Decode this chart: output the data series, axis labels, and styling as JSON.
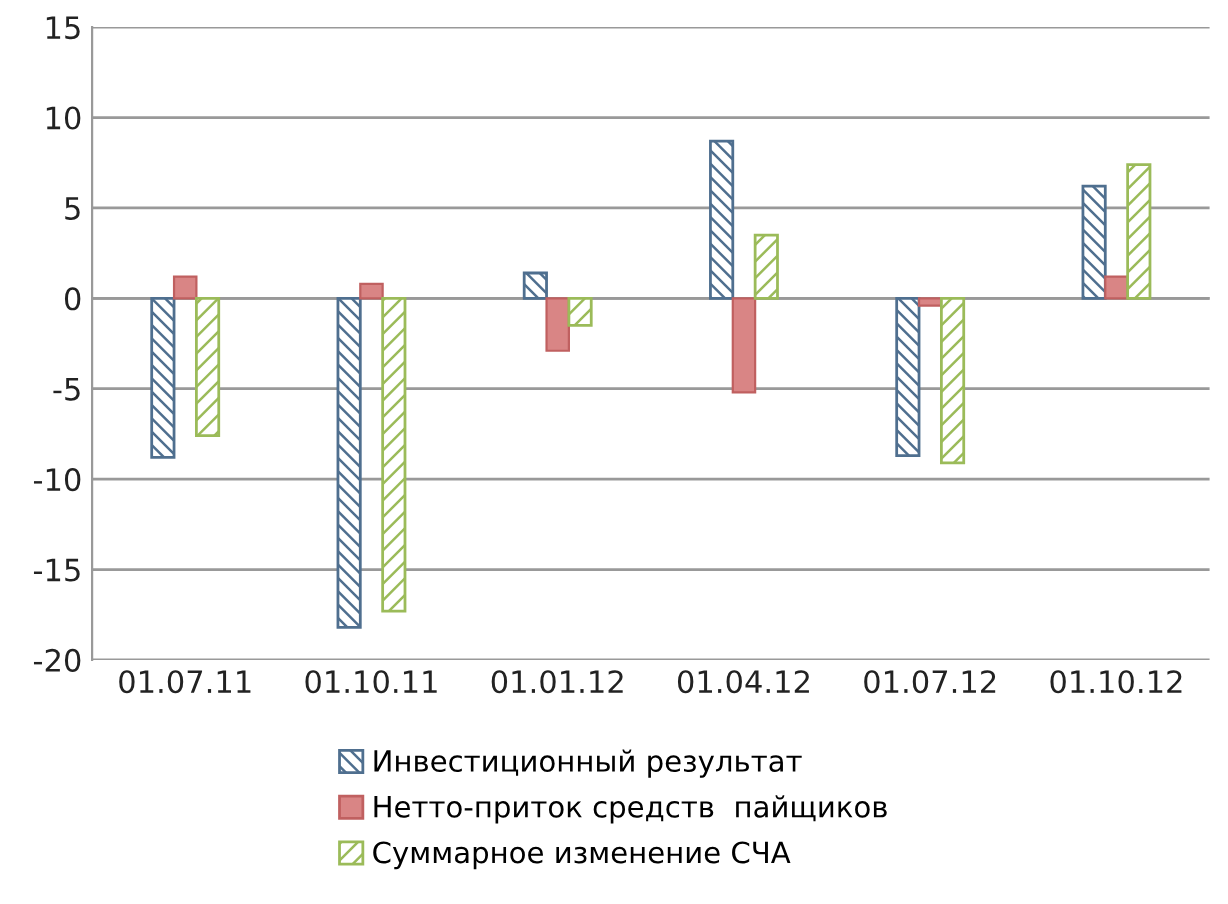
{
  "chart_data": {
    "type": "bar",
    "categories": [
      "01.07.11",
      "01.10.11",
      "01.01.12",
      "01.04.12",
      "01.07.12",
      "01.10.12"
    ],
    "series": [
      {
        "name": "Инвестиционный результат",
        "color": "#4f6f8f",
        "values": [
          -8.8,
          -18.2,
          1.4,
          8.7,
          -8.7,
          6.2
        ]
      },
      {
        "name": "Нетто-приток средств  пайщиков",
        "color": "#d98585",
        "values": [
          1.2,
          0.8,
          -2.9,
          -5.2,
          -0.4,
          1.2
        ]
      },
      {
        "name": "Суммарное изменение СЧА",
        "color": "#9bbb59",
        "values": [
          -7.6,
          -17.3,
          -1.5,
          3.5,
          -9.1,
          7.4
        ]
      }
    ],
    "ylim": [
      -20,
      15
    ],
    "yticks": [
      -20,
      -15,
      -10,
      -5,
      0,
      5,
      10,
      15
    ],
    "grid": "y",
    "legend": "bottom"
  }
}
